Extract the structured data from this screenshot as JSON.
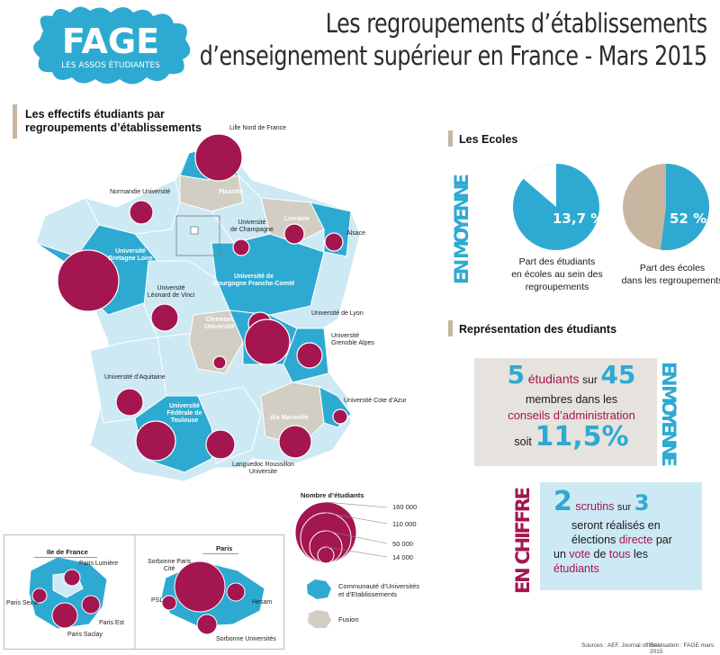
{
  "header": {
    "title_line1": "Les regroupements d’établissements",
    "title_line2": "d’enseignement supérieur en France - Mars 2015",
    "logo_text": "FAGE",
    "logo_sub": "LES ASSOS ÉTUDIANTES"
  },
  "map_section": {
    "heading_line1": "Les effectifs étudiants par",
    "heading_line2": "regroupements d’établissements",
    "labels": {
      "lille": "Lille Nord de France",
      "normandie": "Normandie Université",
      "picardie": "Picardie",
      "champagne1": "Université",
      "champagne2": "de Champagne",
      "lorraine": "Lorraine",
      "alsace": "Alsace",
      "bretagne1": "Université",
      "bretagne2": "Bretagne Loire",
      "vinci1": "Université",
      "vinci2": "Léonard de Vinci",
      "bourgogne1": "Université de",
      "bourgogne2": "Bourgogne Franche-Comté",
      "lyon": "Université de Lyon",
      "clermont1": "Clermont",
      "clermont2": "Université",
      "grenoble1": "Université",
      "grenoble2": "Grenoble Alpes",
      "aquitaine": "Université d’Aquitaine",
      "cote_azur": "Université Cote d’Azur",
      "toulouse1": "Université",
      "toulouse2": "Fédérale de Toulouse",
      "aix": "Aix Marseille",
      "languedoc1": "Languedoc Roussillon",
      "languedoc2": "Universite"
    }
  },
  "idf_inset": {
    "title": "Ile de France",
    "labels": {
      "lumiere": "Paris Lumière",
      "seine": "Paris Seine",
      "est": "Paris Est",
      "saclay": "Paris Saclay"
    }
  },
  "paris_inset": {
    "title": "Paris",
    "labels": {
      "sorbonne_cite1": "Sorbonne Paris",
      "sorbonne_cite2": "Cité",
      "psl": "PSL",
      "hesam": "Hesam",
      "sorbonne_univ": "Sorbonne Universités"
    }
  },
  "legend": {
    "title": "Nombre d’étudiants",
    "values": [
      "160 000",
      "110 000",
      "50 000",
      "14 000"
    ],
    "comue_line1": "Communauté d’Universités",
    "comue_line2": "et d’Etablissements",
    "fusion": "Fusion"
  },
  "ecoles": {
    "heading": "Les Ecoles",
    "vertical": "EN MOYENNE",
    "pie1_value": "13,7 %",
    "pie1_fraction": 0.137,
    "pie1_cap1": "Part des étudiants",
    "pie1_cap2": "en écoles au sein des",
    "pie1_cap3": "regroupements",
    "pie2_value": "52 %",
    "pie2_fraction": 0.52,
    "pie2_cap1": "Part des écoles",
    "pie2_cap2": "dans les regroupements"
  },
  "representation": {
    "heading": "Représentation des étudiants",
    "vertical1": "EN MOYENNE",
    "vertical2": "EN CHIFFRE",
    "box1": {
      "n1": "5",
      "w1": "étudiants",
      "w2": "sur",
      "n2": "45",
      "l2": "membres dans les",
      "l3": "conseils d’administration",
      "l4": "soit",
      "pct": "11,5%"
    },
    "box2": {
      "n1": "2",
      "w1": "scrutins",
      "w2": "sur",
      "n2": "3",
      "l2": "seront réalisés en",
      "l3a": "élections",
      "l3b": "directe",
      "l3c": "par",
      "l4a": "un",
      "l4b": "vote",
      "l4c": "de",
      "l4d": "tous",
      "l4e": "les",
      "l5": "étudiants"
    }
  },
  "footer": {
    "sources": "Sources : AEF, Journal officiel",
    "realisation": "Réalisation : FAGE mars 2015"
  },
  "colors": {
    "accent_blue": "#2eaad2",
    "light_blue": "#cde9f3",
    "bubble": "#a3164f",
    "fusion": "#d3cec4",
    "tan": "#c8b6a0"
  }
}
